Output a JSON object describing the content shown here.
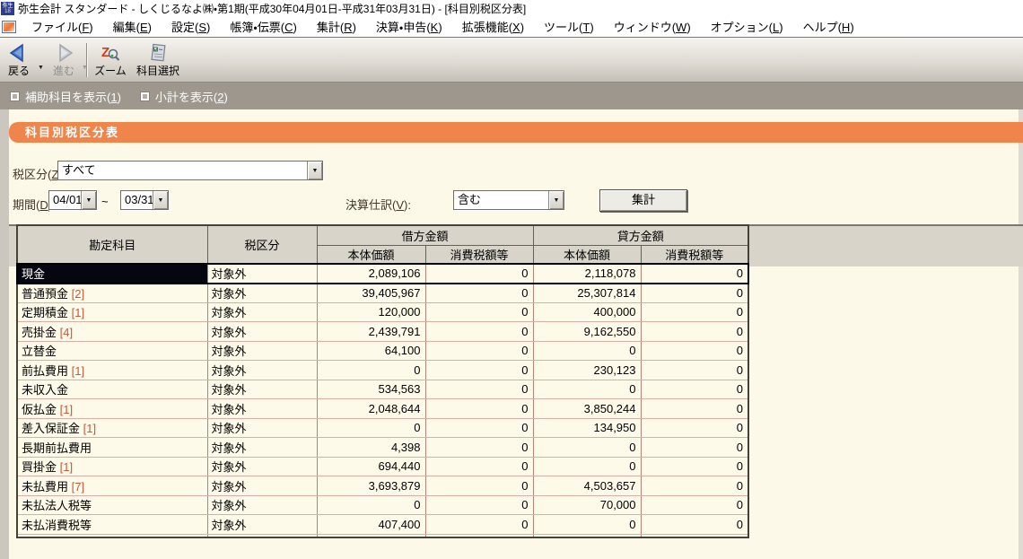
{
  "window": {
    "title": "弥生会計 スタンダード - しくじるなよ㈱・第1期(平成30年04月01日-平成31年03月31日) - [科目別税区分表]"
  },
  "menubar": {
    "items": [
      "ファイル(F)",
      "編集(E)",
      "設定(S)",
      "帳簿・伝票(C)",
      "集計(R)",
      "決算・申告(K)",
      "拡張機能(X)",
      "ツール(T)",
      "ウィンドウ(W)",
      "オプション(L)",
      "ヘルプ(H)"
    ]
  },
  "toolbar": {
    "back_label": "戻る",
    "forward_label": "進む",
    "zoom_label": "ズーム",
    "account_select_label": "科目選択",
    "caret": "▼"
  },
  "options_bar": {
    "checkboxes": [
      {
        "label": "補助科目を表示(1)",
        "checked": false
      },
      {
        "label": "小計を表示(2)",
        "checked": false
      }
    ]
  },
  "page": {
    "title": "科目別税区分表"
  },
  "filters": {
    "tax_class": {
      "label": "税区分(Z):",
      "value": "すべて"
    },
    "period": {
      "label": "期間(D):",
      "from": "04/01",
      "separator": "~",
      "to": "03/31"
    },
    "closing_entries": {
      "label": "決算仕訳(V):",
      "value": "含む"
    },
    "aggregate_button": "集計",
    "dropdown_arrow": "▼"
  },
  "table": {
    "headers": {
      "account": "勘定科目",
      "tax_class": "税区分",
      "debit": "借方金額",
      "credit": "貸方金額",
      "base_amount": "本体価額",
      "tax_amount": "消費税額等"
    },
    "rows": [
      {
        "account": "現金",
        "count": "",
        "tax_class": "対象外",
        "debit_base": "2,089,106",
        "debit_tax": "0",
        "credit_base": "2,118,078",
        "credit_tax": "0",
        "selected": true
      },
      {
        "account": "普通預金",
        "count": "[2]",
        "tax_class": "対象外",
        "debit_base": "39,405,967",
        "debit_tax": "0",
        "credit_base": "25,307,814",
        "credit_tax": "0"
      },
      {
        "account": "定期積金",
        "count": "[1]",
        "tax_class": "対象外",
        "debit_base": "120,000",
        "debit_tax": "0",
        "credit_base": "400,000",
        "credit_tax": "0"
      },
      {
        "account": "売掛金",
        "count": "[4]",
        "tax_class": "対象外",
        "debit_base": "2,439,791",
        "debit_tax": "0",
        "credit_base": "9,162,550",
        "credit_tax": "0"
      },
      {
        "account": "立替金",
        "count": "",
        "tax_class": "対象外",
        "debit_base": "64,100",
        "debit_tax": "0",
        "credit_base": "0",
        "credit_tax": "0"
      },
      {
        "account": "前払費用",
        "count": "[1]",
        "tax_class": "対象外",
        "debit_base": "0",
        "debit_tax": "0",
        "credit_base": "230,123",
        "credit_tax": "0"
      },
      {
        "account": "未収入金",
        "count": "",
        "tax_class": "対象外",
        "debit_base": "534,563",
        "debit_tax": "0",
        "credit_base": "0",
        "credit_tax": "0"
      },
      {
        "account": "仮払金",
        "count": "[1]",
        "tax_class": "対象外",
        "debit_base": "2,048,644",
        "debit_tax": "0",
        "credit_base": "3,850,244",
        "credit_tax": "0"
      },
      {
        "account": "差入保証金",
        "count": "[1]",
        "tax_class": "対象外",
        "debit_base": "0",
        "debit_tax": "0",
        "credit_base": "134,950",
        "credit_tax": "0"
      },
      {
        "account": "長期前払費用",
        "count": "",
        "tax_class": "対象外",
        "debit_base": "4,398",
        "debit_tax": "0",
        "credit_base": "0",
        "credit_tax": "0"
      },
      {
        "account": "買掛金",
        "count": "[1]",
        "tax_class": "対象外",
        "debit_base": "694,440",
        "debit_tax": "0",
        "credit_base": "0",
        "credit_tax": "0"
      },
      {
        "account": "未払費用",
        "count": "[7]",
        "tax_class": "対象外",
        "debit_base": "3,693,879",
        "debit_tax": "0",
        "credit_base": "4,503,657",
        "credit_tax": "0"
      },
      {
        "account": "未払法人税等",
        "count": "",
        "tax_class": "対象外",
        "debit_base": "0",
        "debit_tax": "0",
        "credit_base": "70,000",
        "credit_tax": "0"
      },
      {
        "account": "未払消費税等",
        "count": "",
        "tax_class": "対象外",
        "debit_base": "407,400",
        "debit_tax": "0",
        "credit_base": "0",
        "credit_tax": "0"
      }
    ]
  },
  "colors": {
    "accent_orange": "#F0854B",
    "header_gray": "#D9D4CA",
    "background_cream": "#FDF9E9",
    "options_bar": "#9D978D",
    "count_red": "#C25A3A",
    "selection_black": "#06060F"
  }
}
